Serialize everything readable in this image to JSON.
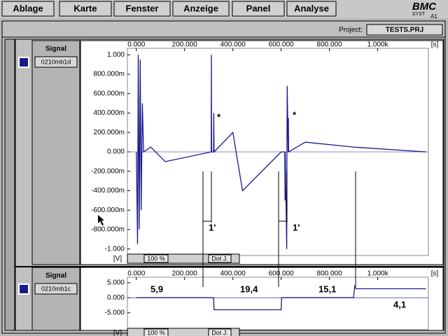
{
  "menu": [
    "Ablage",
    "Karte",
    "Fenster",
    "Anzeige",
    "Panel",
    "Analyse"
  ],
  "logo": {
    "brand": "BMC",
    "sub": "SYST",
    "tag": "A1"
  },
  "project": {
    "label": "Project:",
    "name": "TESTS.PRJ"
  },
  "chart_data": [
    {
      "type": "line",
      "panel_label": "Signal",
      "channel": "0210mb1d",
      "x_unit": "[s]",
      "y_unit": "[V]",
      "zoom": "100 %",
      "mode": "Dot J.",
      "xlim": [
        -37,
        1210
      ],
      "ylim": [
        -1.06,
        1.06
      ],
      "xticks": [
        {
          "value": 0,
          "label": "0.000"
        },
        {
          "value": 200,
          "label": "200.000"
        },
        {
          "value": 400,
          "label": "400.000"
        },
        {
          "value": 600,
          "label": "600.000"
        },
        {
          "value": 800,
          "label": "800.000"
        },
        {
          "value": 1000,
          "label": "1.000k"
        }
      ],
      "yticks": [
        {
          "value": 1,
          "label": "1.000"
        },
        {
          "value": 0.8,
          "label": "800.000m"
        },
        {
          "value": 0.6,
          "label": "600.000m"
        },
        {
          "value": 0.4,
          "label": "400.000m"
        },
        {
          "value": 0.2,
          "label": "200.000m"
        },
        {
          "value": 0,
          "label": "0.000"
        },
        {
          "value": -0.2,
          "label": "-200.000m"
        },
        {
          "value": -0.4,
          "label": "-400.000m"
        },
        {
          "value": -0.6,
          "label": "-600.000m"
        },
        {
          "value": -0.8,
          "label": "-800.000m"
        },
        {
          "value": -1,
          "label": "-1.000"
        }
      ],
      "series": [
        {
          "color": "#1a1a8c",
          "x": [
            0,
            5,
            8,
            12,
            16,
            20,
            25,
            30,
            60,
            120,
            310,
            311,
            312,
            320,
            321,
            322,
            400,
            440,
            600,
            615,
            616,
            617,
            623,
            624,
            625,
            629,
            630,
            631,
            700,
            900,
            1200
          ],
          "values": [
            0,
            -0.95,
            1.0,
            -0.8,
            0.95,
            -0.6,
            0.5,
            0,
            0.05,
            -0.1,
            0,
            1.0,
            0,
            0,
            0.4,
            0,
            0.2,
            -0.4,
            0,
            0,
            -0.5,
            0,
            -1.0,
            0,
            0.68,
            0,
            0.35,
            0,
            0.1,
            0.05,
            0
          ]
        }
      ],
      "annotations": [
        "*",
        "*",
        "1'",
        "1'"
      ]
    },
    {
      "type": "line",
      "panel_label": "Signal",
      "channel": "0210mb1c",
      "x_unit": "[s]",
      "y_unit": "[V]",
      "zoom": "100 %",
      "mode": "Dot J.",
      "xlim": [
        -37,
        1210
      ],
      "ylim": [
        -10.4,
        6.6
      ],
      "xticks": [
        {
          "value": 0,
          "label": "0.000"
        },
        {
          "value": 200,
          "label": "200.000"
        },
        {
          "value": 400,
          "label": "400.000"
        },
        {
          "value": 600,
          "label": "600.000"
        },
        {
          "value": 800,
          "label": "800.000"
        },
        {
          "value": 1000,
          "label": "1.000k"
        }
      ],
      "yticks": [
        {
          "value": 5,
          "label": "5.000"
        },
        {
          "value": 0,
          "label": "0.000"
        },
        {
          "value": -5,
          "label": "-5.000"
        }
      ],
      "series": [
        {
          "color": "#1a1a8c",
          "x": [
            0,
            320,
            322,
            600,
            602,
            900,
            905,
            910,
            1200
          ],
          "values": [
            0,
            0,
            -4,
            -4,
            0,
            0,
            3.8,
            3,
            3
          ]
        }
      ],
      "annotations": [
        "5,9",
        "19,4",
        "15,1",
        "4,1"
      ]
    }
  ]
}
